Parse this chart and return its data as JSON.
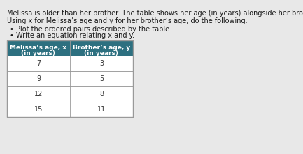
{
  "title_line1": "Melissa is older than her brother. The table shows her age (in years) alongside her brother’s age (in years).",
  "title_line2": "Using x for Melissa’s age and y for her brother’s age, do the following.",
  "bullet1": "Plot the ordered pairs described by the table.",
  "bullet2": "Write an equation relating x and y.",
  "col1_header_line1": "Melissa’s age, x",
  "col1_header_line2": "(in years)",
  "col2_header_line1": "Brother’s age, y",
  "col2_header_line2": "(in years)",
  "melissa_ages": [
    7,
    9,
    12,
    15
  ],
  "brother_ages": [
    3,
    5,
    8,
    11
  ],
  "header_bg": "#2d7080",
  "header_text": "#ffffff",
  "row_bg": "#ffffff",
  "row_text": "#333333",
  "border_color": "#999999",
  "bg_color": "#e8e8e8",
  "body_text_color": "#1a1a1a",
  "font_size_title": 7.0,
  "font_size_bullet": 7.0,
  "font_size_header": 6.5,
  "font_size_cell": 7.0
}
